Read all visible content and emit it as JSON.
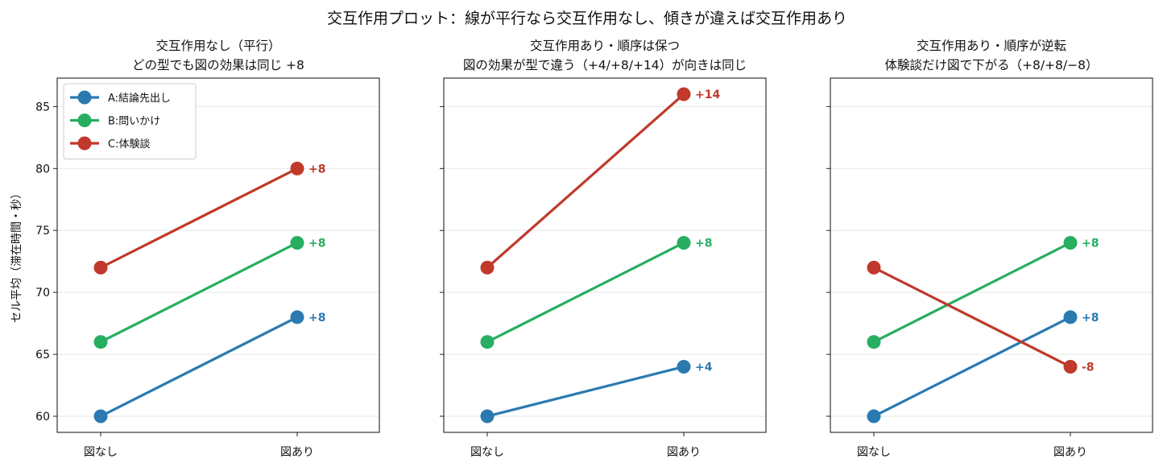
{
  "figure_title": "交互作用プロット：線が平行なら交互作用なし、傾きが違えば交互作用あり",
  "chart_data": [
    {
      "type": "line",
      "title": "交互作用なし（平行）",
      "subtitle": "どの型でも図の効果は同じ +8",
      "ylabel": "セル平均（滞在時間・秒）",
      "xlabel": "",
      "categories": [
        "図なし",
        "図あり"
      ],
      "ylim": [
        58.7,
        87.3
      ],
      "yticks": [
        60,
        65,
        70,
        75,
        80,
        85
      ],
      "grid": "horizontal",
      "legend": "top-left",
      "series": [
        {
          "name": "A:結論先出し",
          "color": "#2a7ab0",
          "values": [
            60,
            68
          ],
          "label": "+8"
        },
        {
          "name": "B:問いかけ",
          "color": "#27ae60",
          "values": [
            66,
            74
          ],
          "label": "+8"
        },
        {
          "name": "C:体験談",
          "color": "#c0392b",
          "values": [
            72,
            80
          ],
          "label": "+8"
        }
      ]
    },
    {
      "type": "line",
      "title": "交互作用あり・順序は保つ",
      "subtitle": "図の効果が型で違う（+4/+8/+14）が向きは同じ",
      "ylabel": "",
      "xlabel": "",
      "categories": [
        "図なし",
        "図あり"
      ],
      "ylim": [
        58.7,
        87.3
      ],
      "yticks": [
        60,
        65,
        70,
        75,
        80,
        85
      ],
      "grid": "horizontal",
      "legend": "",
      "series": [
        {
          "color": "#2a7ab0",
          "values": [
            60,
            64
          ],
          "label": "+4"
        },
        {
          "color": "#27ae60",
          "values": [
            66,
            74
          ],
          "label": "+8"
        },
        {
          "color": "#c0392b",
          "values": [
            72,
            86
          ],
          "label": "+14"
        }
      ]
    },
    {
      "type": "line",
      "title": "交互作用あり・順序が逆転",
      "subtitle": "体験談だけ図で下がる（+8/+8/−8）",
      "ylabel": "",
      "xlabel": "",
      "categories": [
        "図なし",
        "図あり"
      ],
      "ylim": [
        58.7,
        87.3
      ],
      "yticks": [
        60,
        65,
        70,
        75,
        80,
        85
      ],
      "grid": "horizontal",
      "legend": "",
      "series": [
        {
          "color": "#2a7ab0",
          "values": [
            60,
            68
          ],
          "label": "+8"
        },
        {
          "color": "#27ae60",
          "values": [
            66,
            74
          ],
          "label": "+8"
        },
        {
          "color": "#c0392b",
          "values": [
            72,
            64
          ],
          "label": "-8"
        }
      ]
    }
  ]
}
